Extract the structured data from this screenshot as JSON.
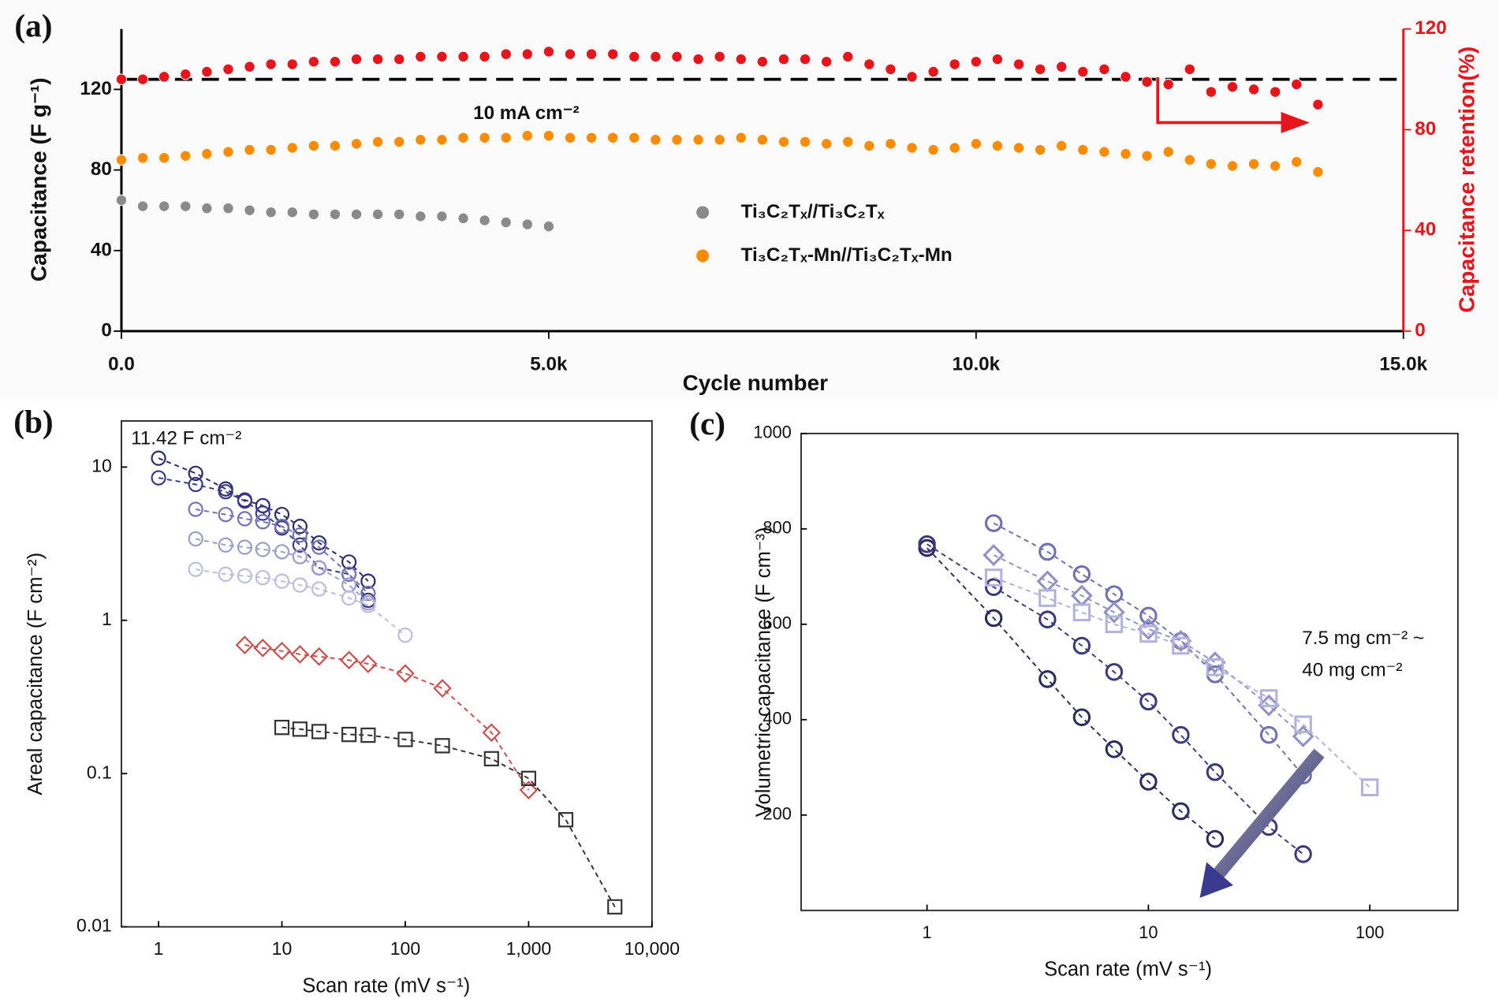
{
  "chart_data": [
    {
      "type": "scatter",
      "panel_label": "(a)",
      "xlabel": "Cycle number",
      "ylabel": "Capacitance (F g⁻¹)",
      "y2label": "Capacitance retention(%)",
      "annotations": [
        "10 mA cm⁻²"
      ],
      "xlim": [
        0,
        15000
      ],
      "xticks": [
        {
          "value": 0,
          "label": "0.0"
        },
        {
          "value": 5000,
          "label": "5.0k"
        },
        {
          "value": 10000,
          "label": "10.0k"
        },
        {
          "value": 15000,
          "label": "15.0k"
        }
      ],
      "ylim": [
        0,
        150
      ],
      "yticks": [
        0,
        40,
        80,
        120
      ],
      "y2lim": [
        0,
        120
      ],
      "y2ticks": [
        0,
        40,
        80,
        120
      ],
      "y2_color": "#e8141b",
      "reference_line": {
        "axis": "y2",
        "value": 100
      },
      "series": [
        {
          "name": "Ti₃C₂Tₓ//Ti₃C₂Tₓ",
          "color": "#8a8a8a",
          "x": [
            0,
            250,
            500,
            750,
            1000,
            1250,
            1500,
            1750,
            2000,
            2250,
            2500,
            2750,
            3000,
            3250,
            3500,
            3750,
            4000,
            4250,
            4500,
            4750,
            5000
          ],
          "values": [
            65,
            62,
            62,
            62,
            61,
            61,
            60,
            59,
            59,
            58,
            58,
            58,
            58,
            58,
            57,
            57,
            56,
            55,
            54,
            53,
            52
          ]
        },
        {
          "name": "Ti₃C₂Tₓ-Mn//Ti₃C₂Tₓ-Mn",
          "color": "#ff8c00",
          "x": [
            0,
            250,
            500,
            750,
            1000,
            1250,
            1500,
            1750,
            2000,
            2250,
            2500,
            2750,
            3000,
            3250,
            3500,
            3750,
            4000,
            4250,
            4500,
            4750,
            5000,
            5250,
            5500,
            5750,
            6000,
            6250,
            6500,
            6750,
            7000,
            7250,
            7500,
            7750,
            8000,
            8250,
            8500,
            8750,
            9000,
            9250,
            9500,
            9750,
            10000,
            10250,
            10500,
            10750,
            11000,
            11250,
            11500,
            11750,
            12000,
            12250,
            12500,
            12750,
            13000,
            13250,
            13500,
            13750,
            14000
          ],
          "values": [
            85,
            86,
            86,
            87,
            88,
            89,
            90,
            90,
            91,
            92,
            92,
            93,
            94,
            94,
            95,
            95,
            96,
            96,
            96,
            97,
            97,
            96,
            96,
            96,
            96,
            95,
            95,
            95,
            95,
            96,
            95,
            94,
            94,
            93,
            94,
            92,
            93,
            91,
            90,
            91,
            93,
            92,
            91,
            90,
            92,
            90,
            89,
            88,
            87,
            89,
            85,
            83,
            82,
            83,
            82,
            84,
            79
          ]
        },
        {
          "color": "#e8141b",
          "axis": "y2",
          "x": [
            0,
            250,
            500,
            750,
            1000,
            1250,
            1500,
            1750,
            2000,
            2250,
            2500,
            2750,
            3000,
            3250,
            3500,
            3750,
            4000,
            4250,
            4500,
            4750,
            5000,
            5250,
            5500,
            5750,
            6000,
            6250,
            6500,
            6750,
            7000,
            7250,
            7500,
            7750,
            8000,
            8250,
            8500,
            8750,
            9000,
            9250,
            9500,
            9750,
            10000,
            10250,
            10500,
            10750,
            11000,
            11250,
            11500,
            11750,
            12000,
            12250,
            12500,
            12750,
            13000,
            13250,
            13500,
            13750,
            14000
          ],
          "values": [
            100,
            100,
            101,
            102,
            103,
            104,
            105,
            106,
            106,
            107,
            107,
            108,
            108,
            108,
            109,
            109,
            109,
            109,
            110,
            110,
            111,
            110,
            110,
            110,
            109,
            109,
            109,
            108,
            109,
            108,
            107,
            108,
            108,
            107,
            109,
            106,
            104,
            101,
            103,
            106,
            107,
            108,
            106,
            104,
            105,
            103,
            104,
            101,
            99,
            98,
            104,
            95,
            97,
            96,
            95,
            98,
            90
          ]
        }
      ]
    },
    {
      "type": "line",
      "panel_label": "(b)",
      "xlabel": "Scan rate (mV s⁻¹)",
      "ylabel": "Areal capacitance (F cm⁻²)",
      "annotations": [
        "11.42 F cm⁻²"
      ],
      "xscale": "log",
      "yscale": "log",
      "xlim": [
        0.5,
        10000
      ],
      "xticks": [
        1,
        10,
        100,
        {
          "value": 1000,
          "label": "1,000"
        },
        {
          "value": 10000,
          "label": "10,000"
        }
      ],
      "ylim": [
        0.01,
        20
      ],
      "yticks": [
        0.01,
        0.1,
        1,
        10
      ],
      "series": [
        {
          "color": "#2a2a6c",
          "marker": "circle",
          "x": [
            1,
            2,
            3.5,
            5,
            7,
            10,
            14,
            20,
            35,
            50
          ],
          "values": [
            11.42,
            9.1,
            7.2,
            6.1,
            5.6,
            4.9,
            4.1,
            3.2,
            2.4,
            1.8
          ]
        },
        {
          "color": "#3a3a8c",
          "marker": "circle",
          "x": [
            1,
            2,
            3.5,
            5,
            7,
            10,
            14,
            20,
            35,
            50
          ],
          "values": [
            8.5,
            7.7,
            6.9,
            6.0,
            5.0,
            4.0,
            3.1,
            2.2,
            2.0,
            1.35
          ]
        },
        {
          "color": "#7272b4",
          "marker": "circle",
          "x": [
            2,
            3.5,
            5,
            7,
            10,
            14,
            20,
            35,
            50
          ],
          "values": [
            5.3,
            4.9,
            4.6,
            4.4,
            4.1,
            3.6,
            3.0,
            2.0,
            1.5
          ]
        },
        {
          "color": "#9c9ccc",
          "marker": "circle",
          "x": [
            2,
            3.5,
            5,
            7,
            10,
            14,
            20,
            35,
            50
          ],
          "values": [
            3.4,
            3.1,
            3.0,
            2.9,
            2.8,
            2.6,
            2.2,
            1.7,
            1.3
          ]
        },
        {
          "color": "#bcbce0",
          "marker": "circle",
          "x": [
            2,
            3.5,
            5,
            7,
            10,
            14,
            20,
            35,
            50,
            100
          ],
          "values": [
            2.15,
            2.0,
            1.95,
            1.9,
            1.8,
            1.7,
            1.6,
            1.4,
            1.25,
            0.8
          ]
        },
        {
          "color": "#c9504d",
          "marker": "diamond",
          "x": [
            5,
            7,
            10,
            14,
            20,
            35,
            50,
            100,
            200,
            500,
            1000
          ],
          "values": [
            0.69,
            0.66,
            0.63,
            0.6,
            0.58,
            0.55,
            0.52,
            0.45,
            0.36,
            0.185,
            0.078
          ]
        },
        {
          "color": "#333333",
          "marker": "square",
          "x": [
            10,
            14,
            20,
            35,
            50,
            100,
            200,
            500,
            1000,
            2000,
            5000
          ],
          "values": [
            0.2,
            0.195,
            0.188,
            0.18,
            0.178,
            0.167,
            0.152,
            0.125,
            0.093,
            0.05,
            0.0135
          ]
        }
      ]
    },
    {
      "type": "line",
      "panel_label": "(c)",
      "xlabel": "Scan rate (mV s⁻¹)",
      "ylabel": "Volumetric capacitance (F cm⁻³)",
      "annotations": [
        "7.5 mg cm⁻² ~",
        "40 mg cm⁻²"
      ],
      "xscale": "log",
      "xlim": [
        0.27,
        250
      ],
      "xticks": [
        1,
        10,
        100
      ],
      "ylim": [
        0,
        1000
      ],
      "yticks": [
        200,
        400,
        600,
        800,
        1000
      ],
      "series": [
        {
          "color": "#2b2b5e",
          "marker": "circle",
          "x": [
            1,
            2,
            3.5,
            5,
            7,
            10,
            14,
            20
          ],
          "values": [
            760,
            613,
            485,
            405,
            338,
            270,
            208,
            150
          ]
        },
        {
          "color": "#3b3b7c",
          "marker": "circle",
          "x": [
            1,
            2,
            3.5,
            5,
            7,
            10,
            14,
            20,
            35,
            50
          ],
          "values": [
            768,
            678,
            610,
            555,
            500,
            438,
            368,
            290,
            175,
            118
          ]
        },
        {
          "color": "#6f6fb2",
          "marker": "circle",
          "x": [
            2,
            3.5,
            5,
            7,
            10,
            14,
            20,
            35,
            50
          ],
          "values": [
            812,
            752,
            705,
            663,
            618,
            565,
            495,
            368,
            283
          ]
        },
        {
          "color": "#9090c8",
          "marker": "diamond",
          "x": [
            2,
            3.5,
            5,
            7,
            10,
            14,
            20,
            35,
            50
          ],
          "values": [
            745,
            690,
            660,
            625,
            590,
            565,
            520,
            430,
            365
          ]
        },
        {
          "color": "#b2b2dc",
          "marker": "square",
          "x": [
            2,
            3.5,
            5,
            7,
            10,
            14,
            20,
            35,
            50,
            100
          ],
          "values": [
            698,
            655,
            625,
            600,
            580,
            555,
            510,
            445,
            390,
            258
          ]
        }
      ]
    }
  ]
}
